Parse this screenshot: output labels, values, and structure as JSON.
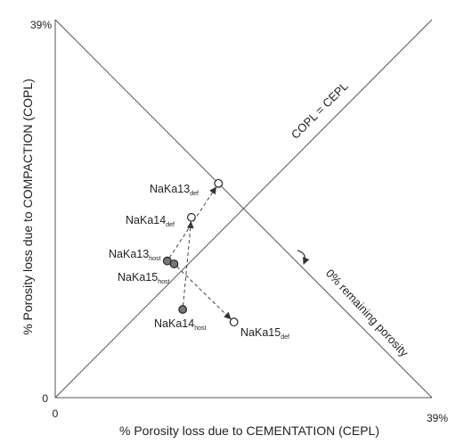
{
  "chart_data": {
    "type": "scatter",
    "xlabel": "% Porosity loss due to CEMENTATION (CEPL)",
    "ylabel": "% Porosity loss due to COMPACTION (COPL)",
    "xlim": [
      0,
      39
    ],
    "ylim": [
      0,
      39
    ],
    "x_ticks": [
      "0",
      "39%"
    ],
    "y_ticks": [
      "0",
      "39%"
    ],
    "grid": false,
    "reference_lines": [
      {
        "label": "COPL = CEPL",
        "from": [
          0,
          0
        ],
        "to": [
          39,
          39
        ]
      },
      {
        "label": "0% remaining porosity",
        "from": [
          0,
          39
        ],
        "to": [
          39,
          0
        ]
      }
    ],
    "points": [
      {
        "id": "nk13h",
        "base": "NaKa13",
        "sub": "host",
        "x": 11.6,
        "y": 14.1,
        "filled": true
      },
      {
        "id": "nk15h",
        "base": "NaKa15",
        "sub": "host",
        "x": 12.3,
        "y": 13.8,
        "filled": true
      },
      {
        "id": "nk14h",
        "base": "NaKa14",
        "sub": "host",
        "x": 13.2,
        "y": 9.1,
        "filled": true
      },
      {
        "id": "nk14d",
        "base": "NaKa14",
        "sub": "def",
        "x": 14.1,
        "y": 18.6,
        "filled": false
      },
      {
        "id": "nk13d",
        "base": "NaKa13",
        "sub": "def",
        "x": 16.9,
        "y": 22.1,
        "filled": false
      },
      {
        "id": "nk15d",
        "base": "NaKa15",
        "sub": "def",
        "x": 18.5,
        "y": 7.8,
        "filled": false
      }
    ],
    "arrows": [
      {
        "from": "nk14h",
        "to": "nk14d"
      },
      {
        "from": "nk13h",
        "to": "nk13d"
      },
      {
        "from": "nk15h",
        "to": "nk15d"
      }
    ]
  }
}
